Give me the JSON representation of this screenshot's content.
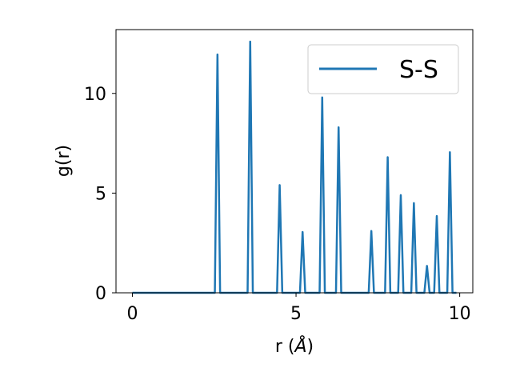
{
  "chart_data": {
    "type": "line",
    "title": "",
    "xlabel": "r (",
    "xlabel_unit": "Å",
    "xlabel_close": ")",
    "ylabel": "g(r)",
    "xlim": [
      -0.5,
      10.4
    ],
    "ylim": [
      0,
      13.2
    ],
    "xticks": [
      0,
      5,
      10
    ],
    "yticks": [
      0,
      5,
      10
    ],
    "xtick_labels": [
      "0",
      "5",
      "10"
    ],
    "ytick_labels": [
      "0",
      "5",
      "10"
    ],
    "grid": false,
    "legend_position": "top-right",
    "series": [
      {
        "name": "S-S",
        "color": "#1f77b4",
        "x": [
          0,
          2.52,
          2.6,
          2.68,
          3.52,
          3.6,
          3.68,
          4.42,
          4.5,
          4.58,
          5.12,
          5.2,
          5.28,
          5.72,
          5.8,
          5.88,
          6.22,
          6.3,
          6.38,
          7.22,
          7.3,
          7.38,
          7.72,
          7.8,
          7.88,
          8.12,
          8.2,
          8.28,
          8.52,
          8.6,
          8.68,
          8.92,
          9.0,
          9.08,
          9.22,
          9.3,
          9.38,
          9.62,
          9.7,
          9.78,
          9.9
        ],
        "y": [
          0,
          0,
          11.95,
          0,
          0,
          12.6,
          0,
          0,
          5.4,
          0,
          0,
          3.05,
          0,
          0,
          9.8,
          0,
          0,
          8.3,
          0,
          0,
          3.1,
          0,
          0,
          6.8,
          0,
          0,
          4.9,
          0,
          0,
          4.5,
          0,
          0,
          1.35,
          0,
          0,
          3.85,
          0,
          0,
          7.05,
          0,
          0
        ]
      }
    ]
  }
}
